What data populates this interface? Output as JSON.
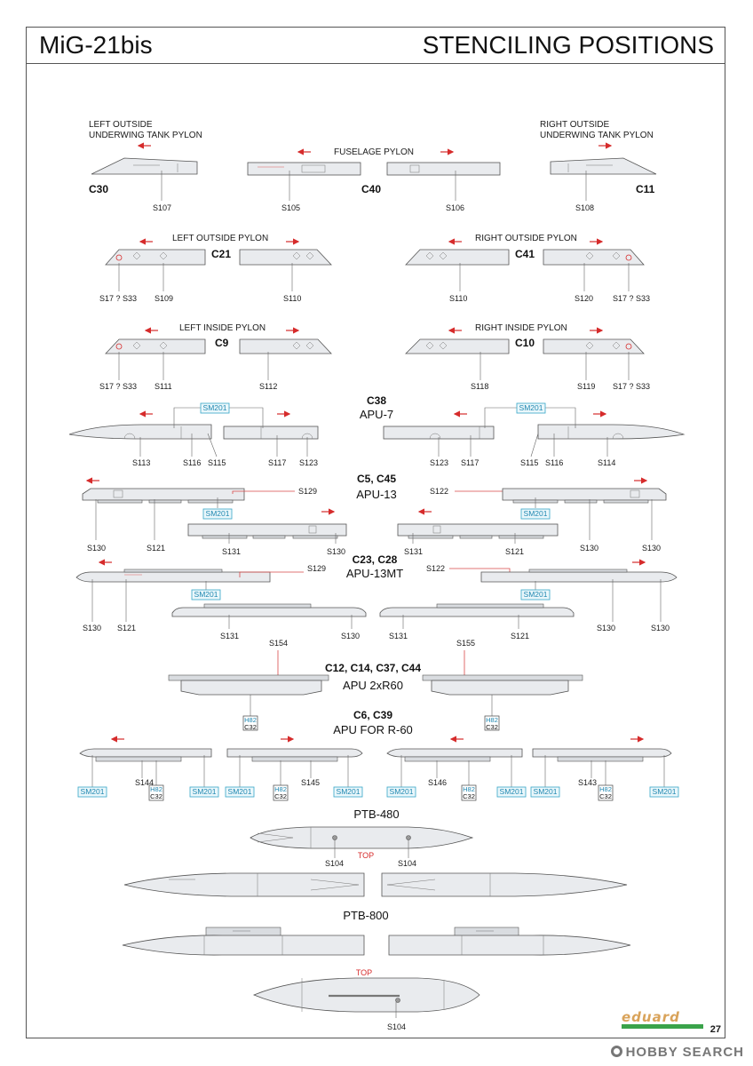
{
  "header": {
    "model": "MiG-21bis",
    "title": "STENCILING POSITIONS"
  },
  "page_number": "27",
  "brand": "eduard",
  "watermark": "HOBBY SEARCH",
  "sections": {
    "left_outside_underwing_tank_pylon": {
      "title_line1": "LEFT OUTSIDE",
      "title_line2": "UNDERWING TANK PYLON",
      "code": "C30",
      "labels": [
        "S107"
      ]
    },
    "fuselage_pylon": {
      "title": "FUSELAGE PYLON",
      "code": "C40",
      "labels": [
        "S105",
        "S106"
      ]
    },
    "right_outside_underwing_tank_pylon": {
      "title_line1": "RIGHT OUTSIDE",
      "title_line2": "UNDERWING TANK PYLON",
      "code": "C11",
      "labels": [
        "S108"
      ]
    },
    "left_outside_pylon": {
      "title": "LEFT OUTSIDE PYLON",
      "code": "C21",
      "labels": [
        "S17 ? S33",
        "S109",
        "S110"
      ]
    },
    "right_outside_pylon": {
      "title": "RIGHT OUTSIDE PYLON",
      "code": "C41",
      "labels": [
        "S110",
        "S120",
        "S17 ? S33"
      ]
    },
    "left_inside_pylon": {
      "title": "LEFT INSIDE PYLON",
      "code": "C9",
      "labels": [
        "S17 ? S33",
        "S111",
        "S112"
      ]
    },
    "right_inside_pylon": {
      "title": "RIGHT INSIDE PYLON",
      "code": "C10",
      "labels": [
        "S118",
        "S119",
        "S17 ? S33"
      ]
    },
    "apu7": {
      "code": "C38",
      "name": "APU-7",
      "tag": "SM201",
      "left_labels": [
        "S113",
        "S116",
        "S115",
        "S117",
        "S123"
      ],
      "right_labels": [
        "S123",
        "S117",
        "S115",
        "S116",
        "S114"
      ]
    },
    "apu13": {
      "code": "C5, C45",
      "name": "APU-13",
      "tag": "SM201",
      "left_labels": [
        "S129",
        "S130",
        "S121",
        "S131",
        "S130"
      ],
      "right_labels": [
        "S122",
        "S130",
        "S131",
        "S121",
        "S130"
      ]
    },
    "apu13mt": {
      "code": "C23, C28",
      "name": "APU-13MT",
      "tag": "SM201",
      "left_labels": [
        "S129",
        "S130",
        "S121",
        "S131",
        "S130"
      ],
      "right_labels": [
        "S122",
        "S130",
        "S131",
        "S121",
        "S130"
      ]
    },
    "apu2xr60": {
      "code": "C12, C14, C37, C44",
      "name": "APU 2xR60",
      "labels": [
        "S154",
        "S155"
      ],
      "tag_top": "H82",
      "tag_bottom": "C32"
    },
    "apu_r60": {
      "code": "C6, C39",
      "name": "APU FOR R-60",
      "tag": "SM201",
      "tag_top": "H82",
      "tag_bottom": "C32",
      "labels": [
        "S144",
        "S145",
        "S146",
        "S143"
      ]
    },
    "ptb480": {
      "name": "PTB-480",
      "top_note": "TOP",
      "labels": [
        "S104",
        "S104"
      ]
    },
    "ptb800": {
      "name": "PTB-800",
      "top_note": "TOP",
      "labels": [
        "S104"
      ]
    }
  },
  "colors": {
    "arrow": "#d62b2b",
    "tag_border": "#35a6c8",
    "part_fill": "#e9ebee",
    "frame": "#555555",
    "brand_bar": "#3aa34a"
  }
}
